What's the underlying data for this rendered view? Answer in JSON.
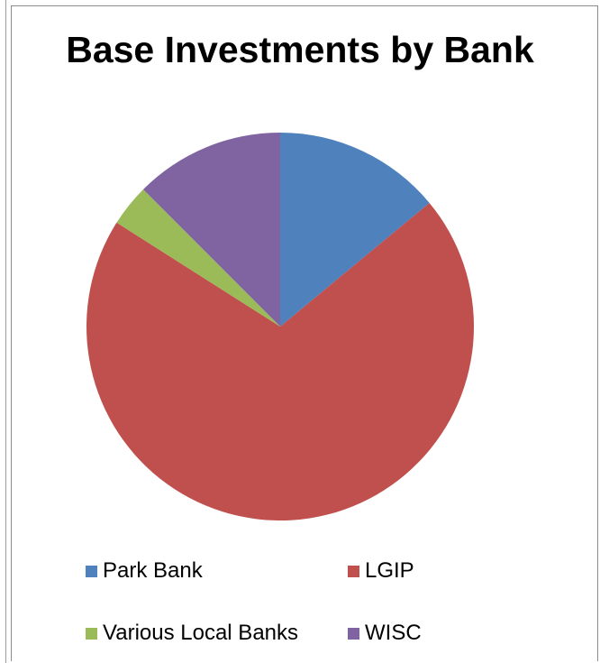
{
  "chart_data": {
    "type": "pie",
    "title": "Base Investments by Bank",
    "labels": [
      "Park Bank",
      "LGIP",
      "Various Local Banks",
      "WISC"
    ],
    "values": [
      14,
      70,
      3.5,
      12.5
    ],
    "colors": [
      "#4f81bd",
      "#c0504d",
      "#9bbb59",
      "#8064a2"
    ],
    "legend_position": "bottom"
  }
}
